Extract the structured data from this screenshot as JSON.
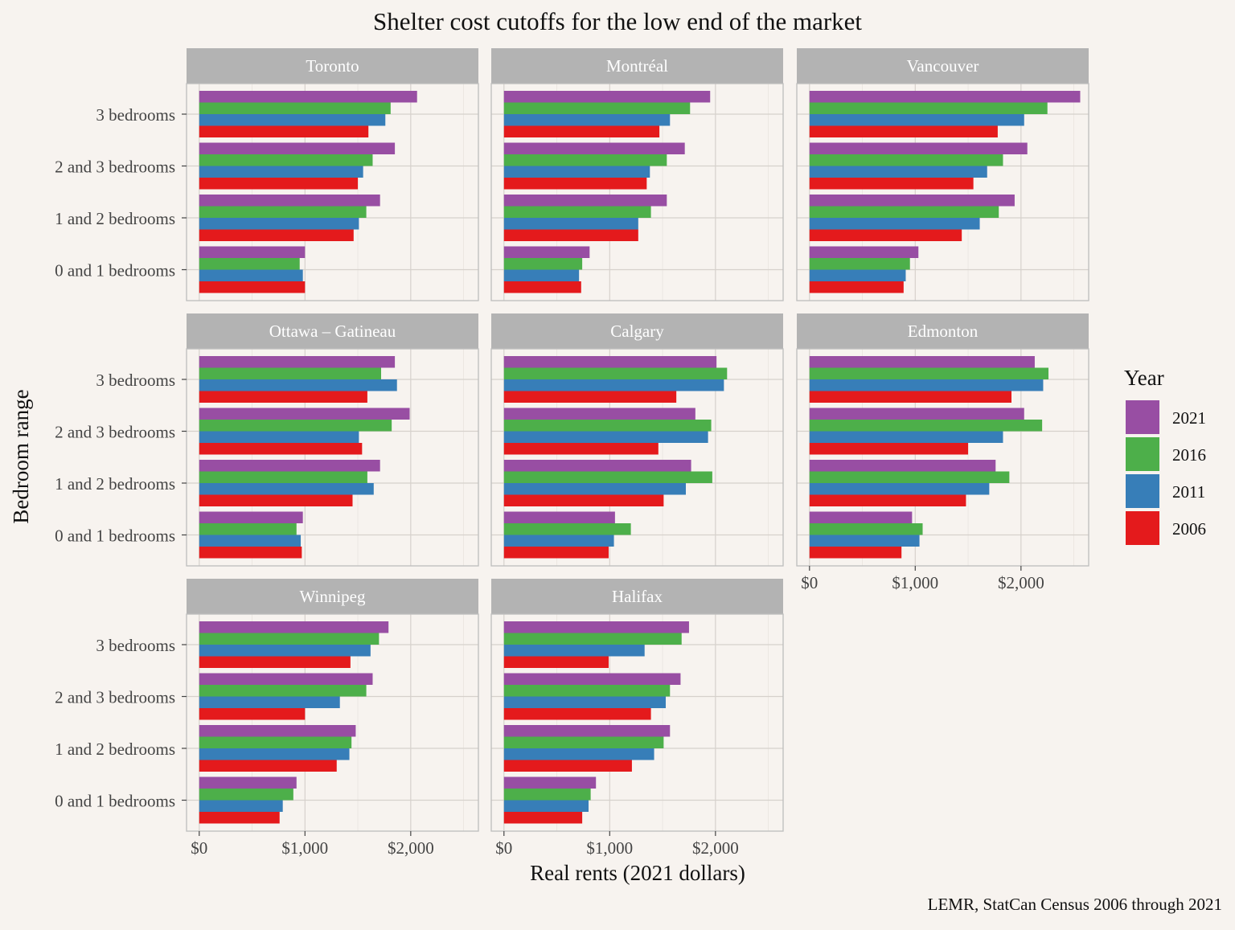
{
  "chart_data": {
    "type": "bar",
    "orientation": "horizontal",
    "layout": "facet_wrap",
    "title": "Shelter cost cutoffs for the low end of the market",
    "xlabel": "Real rents (2021 dollars)",
    "ylabel": "Bedroom range",
    "caption": "LEMR, StatCan Census 2006 through 2021",
    "xlim": [
      -120,
      2640
    ],
    "x_ticks": [
      0,
      1000,
      2000
    ],
    "x_tick_labels": [
      "$0",
      "$1,000",
      "$2,000"
    ],
    "categories": [
      "3 bedrooms",
      "2 and 3 bedrooms",
      "1 and 2 bedrooms",
      "0 and 1 bedrooms"
    ],
    "legend": {
      "title": "Year",
      "position": "right",
      "entries": [
        {
          "label": "2021",
          "color": "#984ea3"
        },
        {
          "label": "2016",
          "color": "#4daf4a"
        },
        {
          "label": "2011",
          "color": "#377eb8"
        },
        {
          "label": "2006",
          "color": "#e41a1c"
        }
      ]
    },
    "series_order": [
      "2021",
      "2016",
      "2011",
      "2006"
    ],
    "grid": true,
    "facets": [
      {
        "name": "Toronto",
        "values": {
          "2021": [
            2060,
            1850,
            1710,
            1000
          ],
          "2016": [
            1810,
            1640,
            1580,
            950
          ],
          "2011": [
            1760,
            1550,
            1510,
            980
          ],
          "2006": [
            1600,
            1500,
            1460,
            1000
          ]
        }
      },
      {
        "name": "Montréal",
        "values": {
          "2021": [
            1950,
            1710,
            1540,
            810
          ],
          "2016": [
            1760,
            1540,
            1390,
            740
          ],
          "2011": [
            1570,
            1380,
            1270,
            710
          ],
          "2006": [
            1470,
            1350,
            1270,
            730
          ]
        }
      },
      {
        "name": "Vancouver",
        "values": {
          "2021": [
            2560,
            2060,
            1940,
            1030
          ],
          "2016": [
            2250,
            1830,
            1790,
            950
          ],
          "2011": [
            2030,
            1680,
            1610,
            910
          ],
          "2006": [
            1780,
            1550,
            1440,
            890
          ]
        }
      },
      {
        "name": "Ottawa – Gatineau",
        "values": {
          "2021": [
            1850,
            1990,
            1710,
            980
          ],
          "2016": [
            1720,
            1820,
            1590,
            920
          ],
          "2011": [
            1870,
            1510,
            1650,
            960
          ],
          "2006": [
            1590,
            1540,
            1450,
            970
          ]
        }
      },
      {
        "name": "Calgary",
        "values": {
          "2021": [
            2010,
            1810,
            1770,
            1050
          ],
          "2016": [
            2110,
            1960,
            1970,
            1200
          ],
          "2011": [
            2080,
            1930,
            1720,
            1040
          ],
          "2006": [
            1630,
            1460,
            1510,
            990
          ]
        }
      },
      {
        "name": "Edmonton",
        "values": {
          "2021": [
            2130,
            2030,
            1760,
            970
          ],
          "2016": [
            2260,
            2200,
            1890,
            1070
          ],
          "2011": [
            2210,
            1830,
            1700,
            1040
          ],
          "2006": [
            1910,
            1500,
            1480,
            870
          ]
        }
      },
      {
        "name": "Winnipeg",
        "values": {
          "2021": [
            1790,
            1640,
            1480,
            920
          ],
          "2016": [
            1700,
            1580,
            1440,
            890
          ],
          "2011": [
            1620,
            1330,
            1420,
            790
          ],
          "2006": [
            1430,
            1000,
            1300,
            760
          ]
        }
      },
      {
        "name": "Halifax",
        "values": {
          "2021": [
            1750,
            1670,
            1570,
            870
          ],
          "2016": [
            1680,
            1570,
            1510,
            820
          ],
          "2011": [
            1330,
            1530,
            1420,
            800
          ],
          "2006": [
            990,
            1390,
            1210,
            740
          ]
        }
      }
    ]
  }
}
